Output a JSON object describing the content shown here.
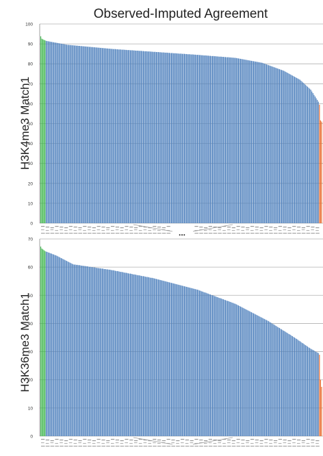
{
  "chart_data": [
    {
      "type": "bar",
      "title": "Observed-Imputed Agreement",
      "ylabel": "H3K4me3 Match1",
      "ylim": [
        0,
        100
      ],
      "yticks": [
        0,
        10,
        20,
        30,
        40,
        50,
        60,
        70,
        80,
        90,
        100
      ],
      "grid": true,
      "axis_break_marker": "...",
      "colors": {
        "first_bars": "#3cb44b",
        "main_bars": "#4f81bd",
        "last_bars": "#e8692a",
        "grid": "#b0b0b0"
      },
      "series": [
        {
          "color": "#3cb44b",
          "values": [
            93.8,
            92.6,
            92.3,
            92.0,
            91.8
          ]
        },
        {
          "color": "#4f81bd",
          "values_description_points": [
            [
              0,
              91.5
            ],
            [
              20,
              89.5
            ],
            [
              60,
              87.5
            ],
            [
              100,
              86
            ],
            [
              140,
              84.5
            ],
            [
              175,
              83
            ],
            [
              200,
              80.5
            ],
            [
              220,
              76.5
            ],
            [
              235,
              72
            ],
            [
              245,
              67
            ],
            [
              252,
              61
            ]
          ],
          "count": 253
        },
        {
          "color": "#e8692a",
          "values": [
            59.5,
            51.6,
            51.0
          ]
        }
      ]
    },
    {
      "type": "bar",
      "title": "",
      "ylabel": "H3K36me3 Match1",
      "ylim": [
        0,
        70
      ],
      "yticks": [
        0,
        10,
        20,
        30,
        40,
        50,
        60,
        70
      ],
      "grid": true,
      "colors": {
        "first_bars": "#3cb44b",
        "main_bars": "#4f81bd",
        "last_bars": "#e8692a",
        "grid": "#b0b0b0"
      },
      "series": [
        {
          "color": "#3cb44b",
          "values": [
            67.3,
            66.6,
            66.3,
            66.0,
            65.7
          ]
        },
        {
          "color": "#4f81bd",
          "values_description_points": [
            [
              0,
              65.5
            ],
            [
              10,
              64
            ],
            [
              25,
              61
            ],
            [
              60,
              59
            ],
            [
              100,
              56
            ],
            [
              140,
              52
            ],
            [
              175,
              47
            ],
            [
              205,
              41
            ],
            [
              230,
              35
            ],
            [
              245,
              31
            ],
            [
              252,
              29.5
            ]
          ],
          "count": 253
        },
        {
          "color": "#e8692a",
          "values": [
            28.9,
            20.0,
            17.5
          ]
        }
      ]
    }
  ]
}
